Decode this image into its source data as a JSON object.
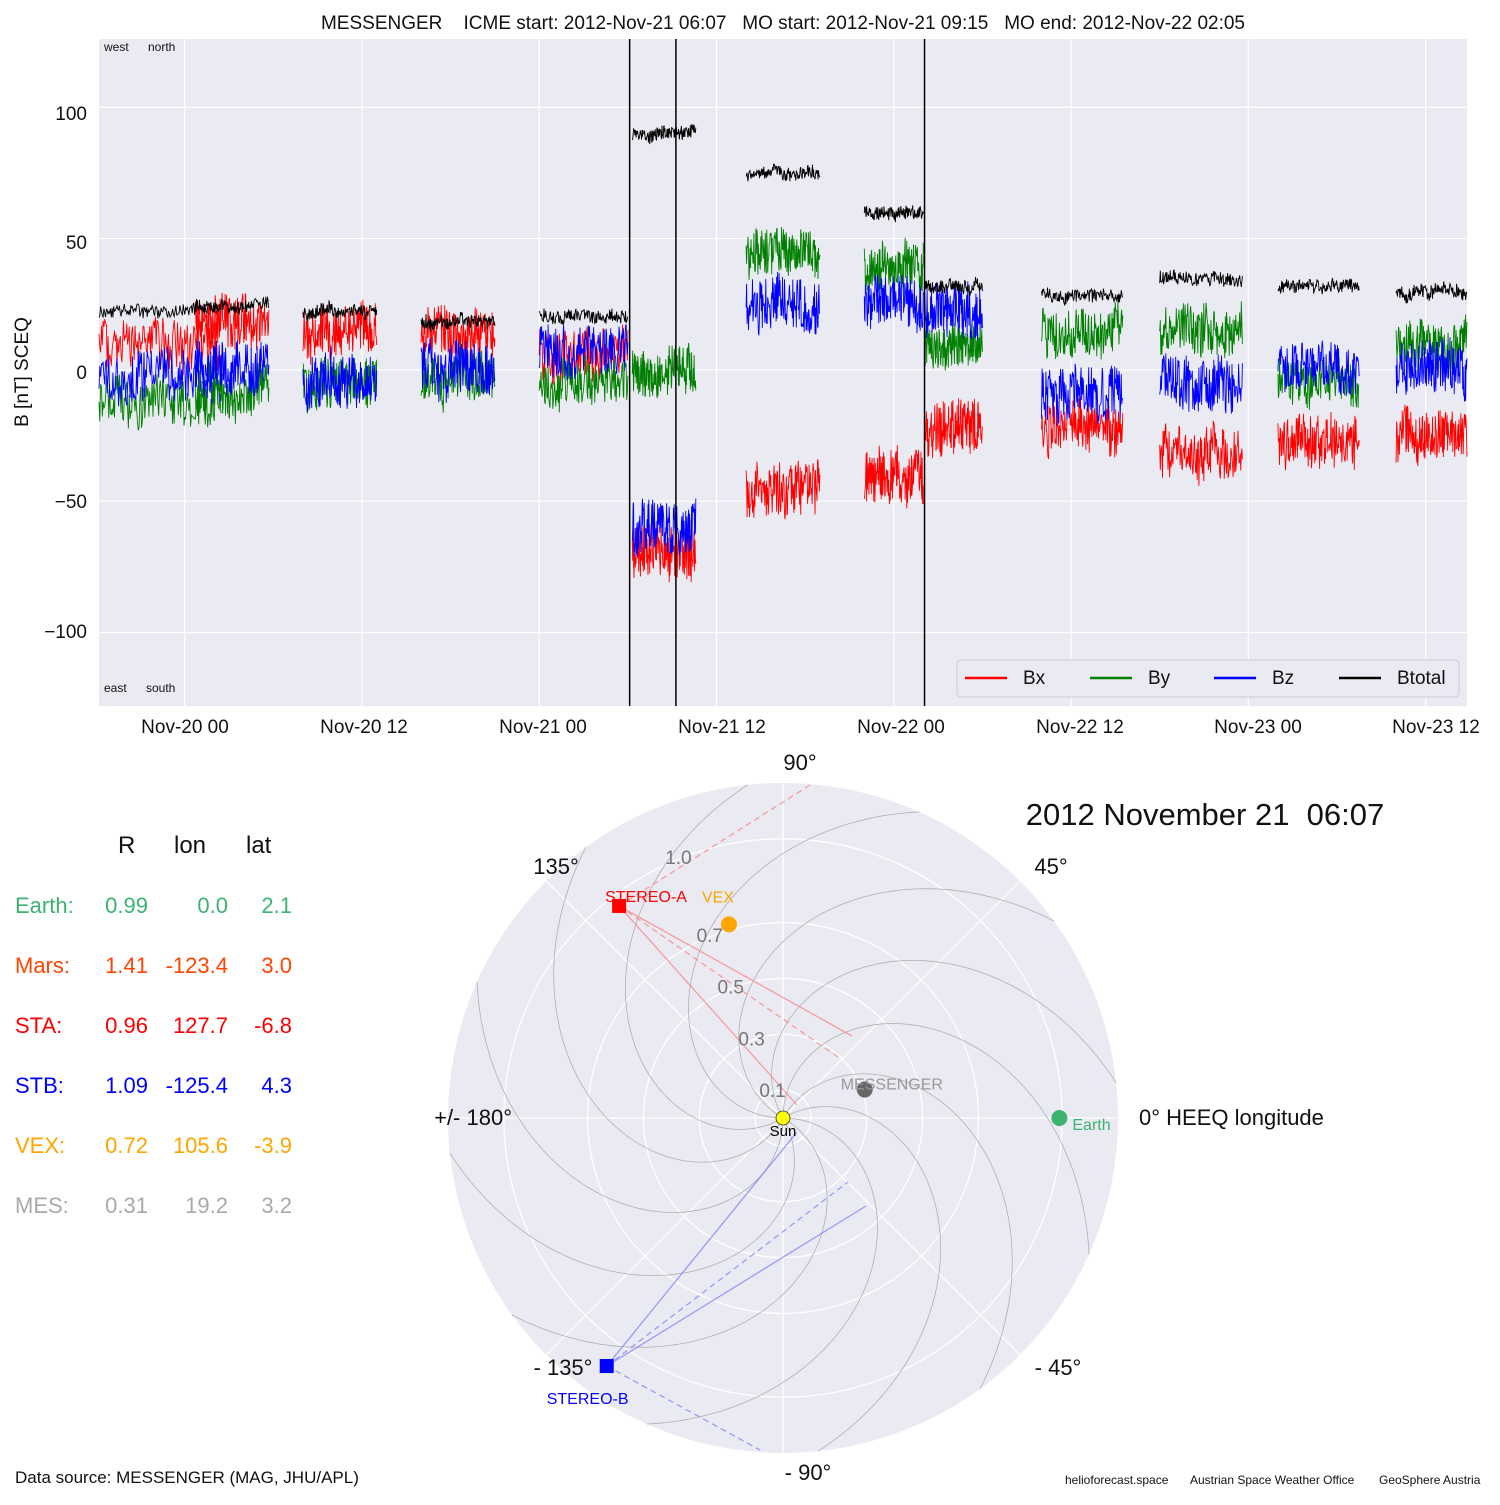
{
  "timeseries": {
    "title": "MESSENGER    ICME start: 2012-Nov-21 06:07   MO start: 2012-Nov-21 09:15   MO end: 2012-Nov-22 02:05",
    "ylabel": "B [nT] SCEQ",
    "corner_labels": {
      "top_left": "west",
      "top_right": "north",
      "bottom_left": "east",
      "bottom_right": "south"
    },
    "xticks": [
      "Nov-20 00",
      "Nov-20 12",
      "Nov-21 00",
      "Nov-21 12",
      "Nov-22 00",
      "Nov-22 12",
      "Nov-23 00",
      "Nov-23 12"
    ],
    "yticks": [
      "100",
      "50",
      "0",
      "−50",
      "−100"
    ],
    "legend": [
      "Bx",
      "By",
      "Bz",
      "Btotal"
    ]
  },
  "chart_data": [
    {
      "type": "line",
      "title": "MESSENGER    ICME start: 2012-Nov-21 06:07   MO start: 2012-Nov-21 09:15   MO end: 2012-Nov-22 02:05",
      "xlabel": "",
      "ylabel": "B [nT] SCEQ",
      "x_unit": "hours since 2012-Nov-20 00:00",
      "xlim": [
        -5.8,
        86.8
      ],
      "ylim": [
        -128,
        126
      ],
      "grid": true,
      "legend_position": "lower-right",
      "event_lines": [
        {
          "label": "ICME start",
          "time": "2012-Nov-21 06:07",
          "x": 30.12
        },
        {
          "label": "MO start",
          "time": "2012-Nov-21 09:15",
          "x": 33.25
        },
        {
          "label": "MO end",
          "time": "2012-Nov-22 02:05",
          "x": 50.08
        }
      ],
      "segments": [
        {
          "x": [
            -5.8,
            2.5
          ],
          "Bx": 10,
          "By": -12,
          "Bz": -3,
          "Bt": 22
        },
        {
          "x": [
            0.7,
            5.7
          ],
          "Bx": 18,
          "By": -8,
          "Bz": 2,
          "Bt": 24
        },
        {
          "x": [
            8.0,
            13.0
          ],
          "Bx": 15,
          "By": -5,
          "Bz": -4,
          "Bt": 22
        },
        {
          "x": [
            16.0,
            21.0
          ],
          "Bx": 14,
          "By": -3,
          "Bz": 0,
          "Bt": 18
        },
        {
          "x": [
            24.0,
            30.0
          ],
          "Bx": 5,
          "By": -5,
          "Bz": 8,
          "Bt": 20
        },
        {
          "x": [
            30.3,
            34.6
          ],
          "Bx": -68,
          "By": 0,
          "Bz": -60,
          "Bt": 90
        },
        {
          "x": [
            38.0,
            43.0
          ],
          "Bx": -45,
          "By": 45,
          "Bz": 25,
          "Bt": 75
        },
        {
          "x": [
            46.0,
            50.0
          ],
          "Bx": -40,
          "By": 40,
          "Bz": 25,
          "Bt": 60
        },
        {
          "x": [
            50.1,
            54.0
          ],
          "Bx": -22,
          "By": 10,
          "Bz": 22,
          "Bt": 32
        },
        {
          "x": [
            58.0,
            63.5
          ],
          "Bx": -22,
          "By": 15,
          "Bz": -10,
          "Bt": 28
        },
        {
          "x": [
            66.0,
            71.6
          ],
          "Bx": -32,
          "By": 15,
          "Bz": -5,
          "Bt": 35
        },
        {
          "x": [
            74.0,
            79.5
          ],
          "Bx": -28,
          "By": -5,
          "Bz": 2,
          "Bt": 32
        },
        {
          "x": [
            82.0,
            86.8
          ],
          "Bx": -25,
          "By": 10,
          "Bz": 0,
          "Bt": 30
        }
      ],
      "series": [
        {
          "name": "Bx",
          "color": "#ff0000"
        },
        {
          "name": "By",
          "color": "#008000"
        },
        {
          "name": "Bz",
          "color": "#0000ff"
        },
        {
          "name": "Btotal",
          "color": "#000000"
        }
      ]
    },
    {
      "type": "scatter",
      "subtype": "polar",
      "title": "2012 November 21  06:07",
      "radial_ticks": [
        "0.1",
        "0.3",
        "0.5",
        "0.7",
        "1.0"
      ],
      "rmax": 1.2,
      "angle_labels": {
        "deg90": "90°",
        "deg45": "45°",
        "deg0": "0° HEEQ longitude",
        "degm45": "- 45°",
        "degm90": "- 90°",
        "degm135": "- 135°",
        "deg180": "+/- 180°",
        "deg135": "135°"
      },
      "points": [
        {
          "name": "Sun",
          "r": 0.0,
          "lon": 0.0,
          "color": "#ffff00"
        },
        {
          "name": "Earth",
          "r": 0.99,
          "lon": 0.0,
          "color": "#3cb371"
        },
        {
          "name": "MESSENGER",
          "r": 0.31,
          "lon": 19.2,
          "color": "#666666"
        },
        {
          "name": "VEX",
          "r": 0.72,
          "lon": 105.6,
          "color": "#ffa500"
        },
        {
          "name": "STEREO-A",
          "r": 0.96,
          "lon": 127.7,
          "color": "#ff0000"
        },
        {
          "name": "STEREO-B",
          "r": 1.09,
          "lon": -125.4,
          "color": "#0000ff"
        }
      ]
    }
  ],
  "positions": {
    "headers": [
      "R",
      "lon",
      "lat"
    ],
    "rows": [
      {
        "name": "Earth:",
        "R": "0.99",
        "lon": "0.0",
        "lat": "2.1",
        "color": "#3cb371"
      },
      {
        "name": "Mars:",
        "R": "1.41",
        "lon": "-123.4",
        "lat": "3.0",
        "color": "#ff4500"
      },
      {
        "name": "STA:",
        "R": "0.96",
        "lon": "127.7",
        "lat": "-6.8",
        "color": "#ff0000"
      },
      {
        "name": "STB:",
        "R": "1.09",
        "lon": "-125.4",
        "lat": "4.3",
        "color": "#0000ff"
      },
      {
        "name": "VEX:",
        "R": "0.72",
        "lon": "105.6",
        "lat": "-3.9",
        "color": "#ffa500"
      },
      {
        "name": "MES:",
        "R": "0.31",
        "lon": "19.2",
        "lat": "3.2",
        "color": "#a9a9a9"
      }
    ]
  },
  "footer": {
    "source": "Data source: MESSENGER (MAG, JHU/APL)",
    "credits": [
      "helioforecast.space",
      "Austrian Space Weather Office",
      "GeoSphere Austria"
    ]
  },
  "colors": {
    "panel_bg": "#eaeaf2",
    "grid": "#ffffff"
  }
}
